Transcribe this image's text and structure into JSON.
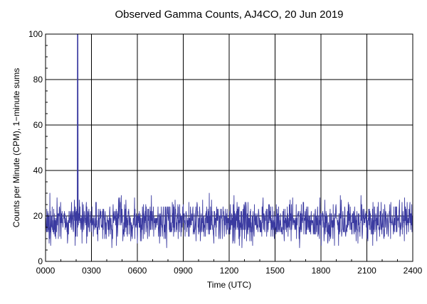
{
  "chart_data": {
    "type": "line",
    "title": "Observed Gamma Counts, AJ4CO, 20 Jun 2019",
    "xlabel": "Time (UTC)",
    "ylabel": "Counts per Minute (CPM), 1−minute sums",
    "xlim": [
      0,
      1440
    ],
    "ylim": [
      0,
      100
    ],
    "x_ticks": [
      {
        "value": 0,
        "label": "0000"
      },
      {
        "value": 180,
        "label": "0300"
      },
      {
        "value": 360,
        "label": "0600"
      },
      {
        "value": 540,
        "label": "0900"
      },
      {
        "value": 720,
        "label": "1200"
      },
      {
        "value": 900,
        "label": "1500"
      },
      {
        "value": 1080,
        "label": "1800"
      },
      {
        "value": 1260,
        "label": "2100"
      },
      {
        "value": 1440,
        "label": "2400"
      }
    ],
    "y_ticks": [
      {
        "value": 0,
        "label": "0"
      },
      {
        "value": 20,
        "label": "20"
      },
      {
        "value": 40,
        "label": "40"
      },
      {
        "value": 60,
        "label": "60"
      },
      {
        "value": 80,
        "label": "80"
      },
      {
        "value": 100,
        "label": "100"
      }
    ],
    "grid": true,
    "line_color": "#3a3aa0",
    "series": [
      {
        "x_start": 0,
        "x_step": 1,
        "baseline_mean": 17.5,
        "baseline_range": [
          6,
          34
        ],
        "spikes": [
          {
            "x": 125,
            "y": 100
          },
          {
            "x": 127,
            "y": 100
          }
        ]
      }
    ]
  }
}
